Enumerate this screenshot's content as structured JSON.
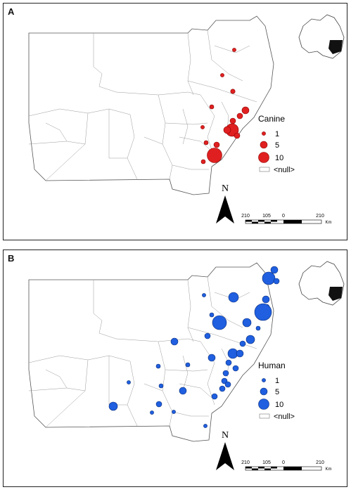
{
  "panels": [
    {
      "letter": "A",
      "legend": {
        "title": "Canine",
        "items": [
          {
            "label": "1",
            "size": 1
          },
          {
            "label": "5",
            "size": 5
          },
          {
            "label": "10",
            "size": 10
          }
        ],
        "null_label": "<null>"
      },
      "color": "#e02020",
      "stroke": "#8a0000"
    },
    {
      "letter": "B",
      "legend": {
        "title": "Human",
        "items": [
          {
            "label": "1",
            "size": 1
          },
          {
            "label": "5",
            "size": 5
          },
          {
            "label": "10",
            "size": 10
          }
        ],
        "null_label": "<null>"
      },
      "color": "#1f5fe0",
      "stroke": "#0a2c78"
    }
  ],
  "north_label": "N",
  "scale": {
    "ticks": [
      "210",
      "105",
      "0",
      "210"
    ],
    "unit": "Km"
  }
}
